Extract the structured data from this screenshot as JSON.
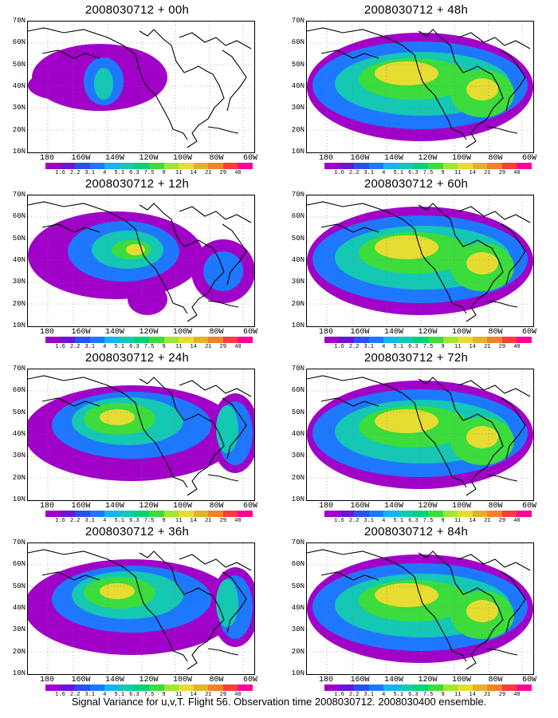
{
  "panels": [
    {
      "title": "2008030712 + 00h",
      "col": 0,
      "row": 0,
      "level": 0
    },
    {
      "title": "2008030712 + 48h",
      "col": 1,
      "row": 0,
      "level": 3
    },
    {
      "title": "2008030712 + 12h",
      "col": 0,
      "row": 1,
      "level": 1
    },
    {
      "title": "2008030712 + 60h",
      "col": 1,
      "row": 1,
      "level": 3
    },
    {
      "title": "2008030712 + 24h",
      "col": 0,
      "row": 2,
      "level": 2
    },
    {
      "title": "2008030712 + 72h",
      "col": 1,
      "row": 2,
      "level": 3
    },
    {
      "title": "2008030712 + 36h",
      "col": 0,
      "row": 3,
      "level": 2
    },
    {
      "title": "2008030712 + 84h",
      "col": 1,
      "row": 3,
      "level": 3
    }
  ],
  "lat_labels": [
    "70N",
    "60N",
    "50N",
    "40N",
    "30N",
    "20N",
    "10N"
  ],
  "lon_labels": [
    "180",
    "160W",
    "140W",
    "120W",
    "100W",
    "80W",
    "60W"
  ],
  "colorbar": {
    "labels": [
      "1.6",
      "2.2",
      "3.1",
      "4",
      "5.1",
      "6.3",
      "7.5",
      "9",
      "11",
      "14",
      "21",
      "29",
      "40"
    ],
    "colors": [
      "#a000c8",
      "#6e14d2",
      "#2850f0",
      "#1e78ff",
      "#14b4f0",
      "#14c8b4",
      "#00d278",
      "#3cdc3c",
      "#a0e632",
      "#e6dc32",
      "#e6af2d",
      "#f08228",
      "#fa3c3c",
      "#ff0096"
    ]
  },
  "caption": "Signal Variance for u,v,T. Flight 56. Observation time 2008030712. 2008030400 ensemble."
}
